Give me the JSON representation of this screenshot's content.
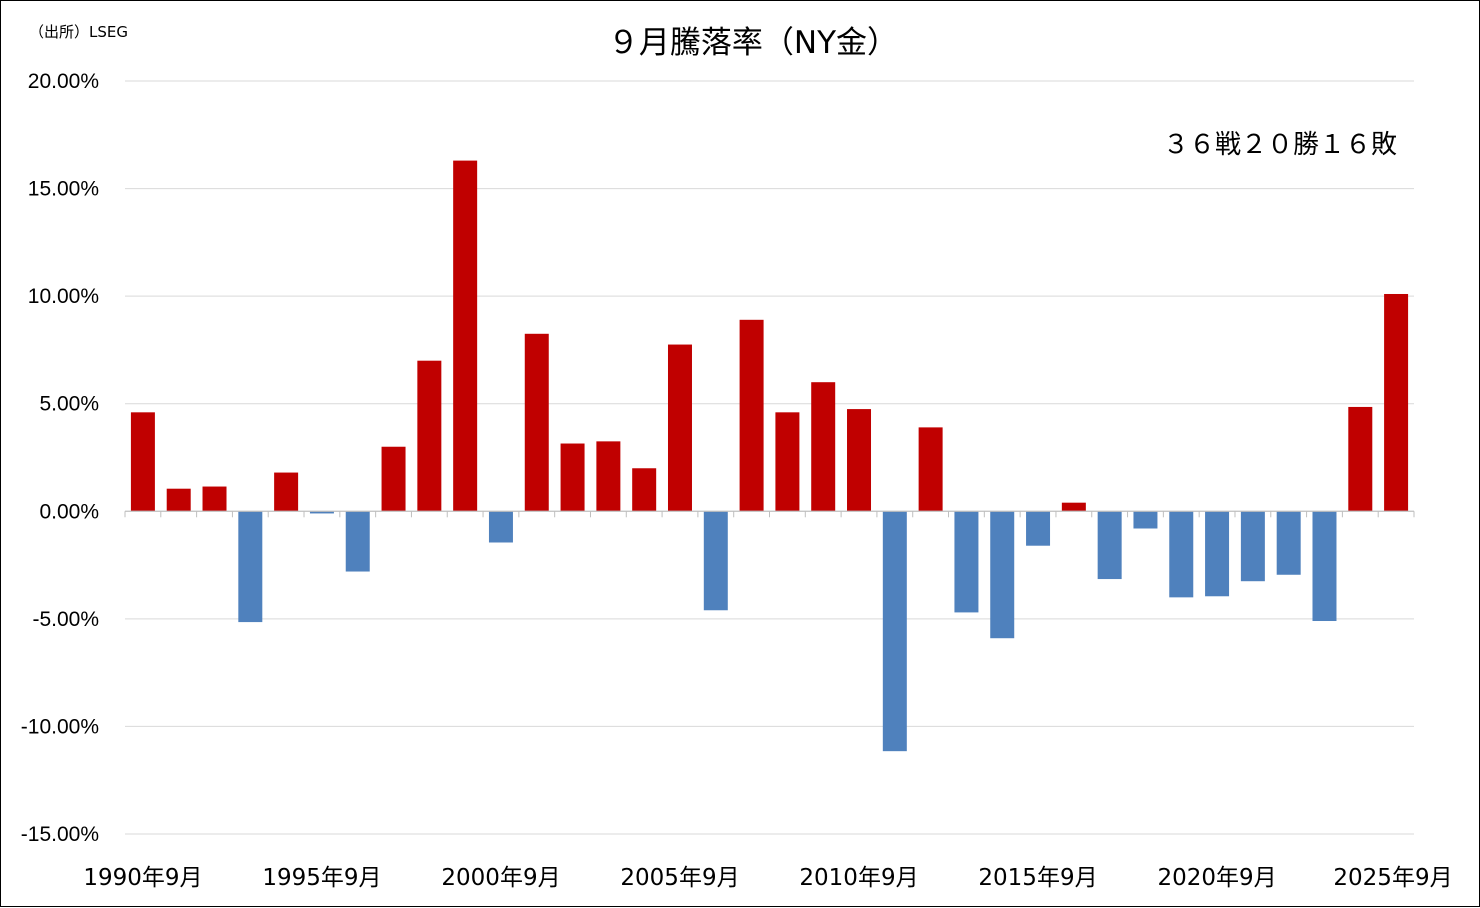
{
  "source": "（出所）LSEG",
  "chart_data": {
    "type": "bar",
    "title": "９月騰落率（NY金）",
    "annotation": "３６戦２０勝１６敗",
    "xlabel": "",
    "ylabel": "",
    "ylim": [
      -15,
      20
    ],
    "ytick_values": [
      20,
      15,
      10,
      5,
      0,
      -5,
      -10,
      -15
    ],
    "ytick_labels": [
      "20.00%",
      "15.00%",
      "10.00%",
      "5.00%",
      "0.00%",
      "-5.00%",
      "-10.00%",
      "-15.00%"
    ],
    "x_tick_labels": [
      {
        "index": 0,
        "label": "1990年9月"
      },
      {
        "index": 5,
        "label": "1995年9月"
      },
      {
        "index": 10,
        "label": "2000年9月"
      },
      {
        "index": 15,
        "label": "2005年9月"
      },
      {
        "index": 20,
        "label": "2010年9月"
      },
      {
        "index": 25,
        "label": "2015年9月"
      },
      {
        "index": 30,
        "label": "2020年9月"
      },
      {
        "index": 35,
        "label": "2025年9月"
      }
    ],
    "categories": [
      "1990年9月",
      "1991年9月",
      "1992年9月",
      "1993年9月",
      "1994年9月",
      "1995年9月",
      "1996年9月",
      "1997年9月",
      "1998年9月",
      "1999年9月",
      "2000年9月",
      "2001年9月",
      "2002年9月",
      "2003年9月",
      "2004年9月",
      "2005年9月",
      "2006年9月",
      "2007年9月",
      "2008年9月",
      "2009年9月",
      "2010年9月",
      "2011年9月",
      "2012年9月",
      "2013年9月",
      "2014年9月",
      "2015年9月",
      "2016年9月",
      "2017年9月",
      "2018年9月",
      "2019年9月",
      "2020年9月",
      "2021年9月",
      "2022年9月",
      "2023年9月",
      "2024年9月",
      "2025年9月"
    ],
    "values": [
      4.6,
      1.05,
      1.15,
      -5.15,
      1.8,
      -0.1,
      -2.8,
      3.0,
      7.0,
      16.3,
      -1.45,
      8.25,
      3.15,
      3.25,
      2.0,
      7.75,
      -4.6,
      8.9,
      4.6,
      6.0,
      4.75,
      -11.15,
      3.9,
      -4.7,
      -5.9,
      -1.6,
      0.4,
      -3.15,
      -0.8,
      -4.0,
      -3.95,
      -3.25,
      -2.95,
      -5.1,
      4.85,
      10.1
    ],
    "grid": true,
    "legend": "none",
    "colors": {
      "positive": "#C00000",
      "negative": "#4F81BD",
      "grid": "#D9D9D9",
      "axis": "#BFBFBF"
    }
  }
}
